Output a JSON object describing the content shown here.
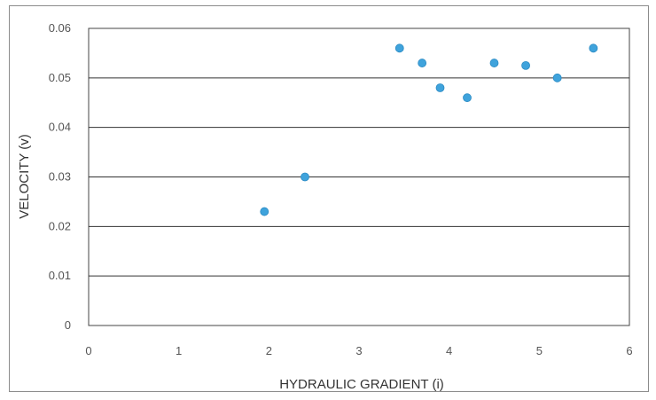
{
  "chart_data": {
    "type": "scatter",
    "title": "",
    "xlabel": "HYDRAULIC GRADIENT (i)",
    "ylabel": "VELOCITY (v)",
    "xlim": [
      0,
      6
    ],
    "ylim": [
      0,
      0.06
    ],
    "x_ticks": [
      "0",
      "1",
      "2",
      "3",
      "4",
      "5",
      "6"
    ],
    "y_ticks": [
      "0",
      "0.01",
      "0.02",
      "0.03",
      "0.04",
      "0.05",
      "0.06"
    ],
    "grid": "horizontal",
    "marker_color": "#3fa3dc",
    "series": [
      {
        "points": [
          {
            "x": 1.95,
            "y": 0.023
          },
          {
            "x": 2.4,
            "y": 0.03
          },
          {
            "x": 3.45,
            "y": 0.056
          },
          {
            "x": 3.7,
            "y": 0.053
          },
          {
            "x": 3.9,
            "y": 0.048
          },
          {
            "x": 4.2,
            "y": 0.046
          },
          {
            "x": 4.5,
            "y": 0.053
          },
          {
            "x": 4.85,
            "y": 0.0525
          },
          {
            "x": 5.2,
            "y": 0.05
          },
          {
            "x": 5.6,
            "y": 0.056
          }
        ]
      }
    ]
  }
}
